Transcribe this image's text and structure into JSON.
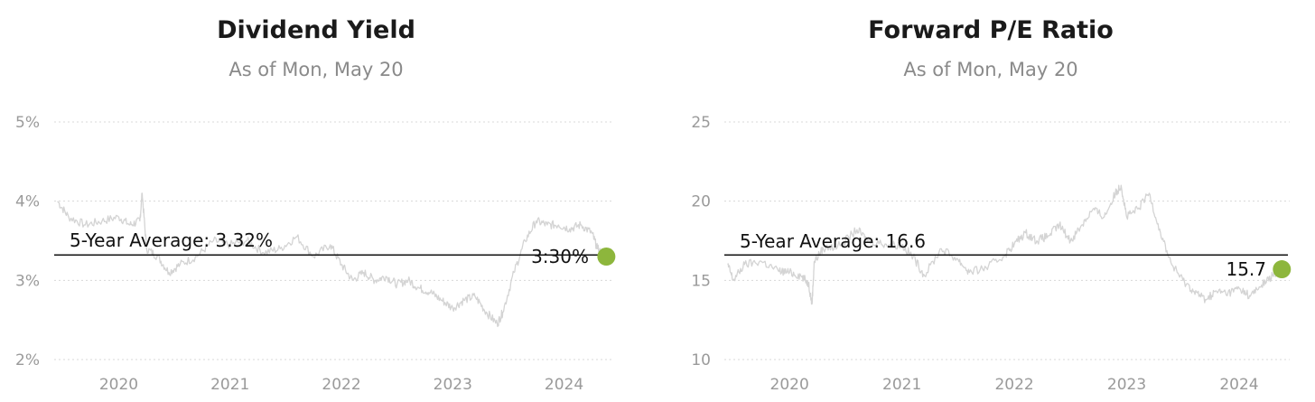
{
  "charts": [
    {
      "title": "Dividend Yield",
      "subtitle": "As of Mon, May 20",
      "average_label": "5-Year Average: 3.32%",
      "current_label": "3:30%"
    },
    {
      "title": "Forward P/E Ratio",
      "subtitle": "As of Mon, May 20",
      "average_label": "5-Year Average: 16.6",
      "current_label": "15.7"
    }
  ],
  "chart_data": [
    {
      "type": "line",
      "title": "Dividend Yield",
      "subtitle": "As of Mon, May 20",
      "x_ticks": [
        "2020",
        "2021",
        "2022",
        "2023",
        "2024"
      ],
      "y_ticks": [
        "5%",
        "4%",
        "3%",
        "2%"
      ],
      "ylim": [
        2,
        5
      ],
      "xlim": [
        2019.42,
        2024.45
      ],
      "grid": true,
      "series": [
        {
          "x": [
            2019.45,
            2019.55,
            2019.7,
            2019.85,
            2020.0,
            2020.1,
            2020.19,
            2020.21,
            2020.25,
            2020.35,
            2020.45,
            2020.55,
            2020.7,
            2020.85,
            2021.0,
            2021.15,
            2021.3,
            2021.45,
            2021.6,
            2021.75,
            2021.9,
            2022.0,
            2022.1,
            2022.2,
            2022.3,
            2022.4,
            2022.5,
            2022.6,
            2022.7,
            2022.8,
            2022.9,
            2023.0,
            2023.1,
            2023.2,
            2023.3,
            2023.4,
            2023.45,
            2023.55,
            2023.65,
            2023.75,
            2023.85,
            2023.95,
            2024.05,
            2024.15,
            2024.25,
            2024.3,
            2024.38
          ],
          "y": [
            4.0,
            3.8,
            3.7,
            3.75,
            3.8,
            3.7,
            3.75,
            4.1,
            3.4,
            3.3,
            3.1,
            3.2,
            3.3,
            3.5,
            3.45,
            3.5,
            3.35,
            3.4,
            3.55,
            3.3,
            3.45,
            3.2,
            3.0,
            3.1,
            3.0,
            3.05,
            2.95,
            3.0,
            2.9,
            2.85,
            2.75,
            2.65,
            2.75,
            2.8,
            2.6,
            2.45,
            2.6,
            3.1,
            3.5,
            3.75,
            3.7,
            3.7,
            3.65,
            3.7,
            3.6,
            3.4,
            3.3
          ],
          "color": "#d4d4d4"
        }
      ],
      "average": 3.32,
      "current": 3.3,
      "line_color": "#d4d4d4",
      "average_color": "#111111",
      "marker_color": "#8db63c"
    },
    {
      "type": "line",
      "title": "Forward P/E Ratio",
      "subtitle": "As of Mon, May 20",
      "x_ticks": [
        "2020",
        "2021",
        "2022",
        "2023",
        "2024"
      ],
      "y_ticks": [
        "25",
        "20",
        "15",
        "10"
      ],
      "ylim": [
        10,
        25
      ],
      "xlim": [
        2019.42,
        2024.45
      ],
      "grid": true,
      "series": [
        {
          "x": [
            2019.45,
            2019.5,
            2019.6,
            2019.75,
            2019.9,
            2020.0,
            2020.1,
            2020.17,
            2020.2,
            2020.22,
            2020.3,
            2020.45,
            2020.6,
            2020.7,
            2020.85,
            2021.0,
            2021.1,
            2021.2,
            2021.35,
            2021.5,
            2021.6,
            2021.75,
            2021.9,
            2022.0,
            2022.1,
            2022.2,
            2022.3,
            2022.4,
            2022.5,
            2022.6,
            2022.7,
            2022.8,
            2022.9,
            2022.95,
            2023.0,
            2023.1,
            2023.2,
            2023.3,
            2023.4,
            2023.5,
            2023.6,
            2023.7,
            2023.8,
            2023.9,
            2024.0,
            2024.1,
            2024.2,
            2024.3,
            2024.38
          ],
          "y": [
            16.0,
            15.0,
            16.0,
            16.2,
            15.6,
            15.5,
            15.3,
            14.8,
            13.5,
            16.2,
            17.0,
            17.2,
            18.2,
            17.5,
            17.3,
            17.2,
            16.5,
            15.3,
            17.0,
            16.3,
            15.5,
            15.8,
            16.5,
            17.3,
            18.0,
            17.5,
            17.8,
            18.5,
            17.5,
            18.5,
            19.5,
            19.0,
            20.5,
            21.0,
            19.0,
            19.5,
            20.5,
            18.0,
            16.0,
            15.0,
            14.3,
            13.8,
            14.3,
            14.2,
            14.5,
            14.0,
            14.7,
            15.3,
            15.7
          ],
          "color": "#d4d4d4"
        }
      ],
      "average": 16.6,
      "current": 15.7,
      "line_color": "#d4d4d4",
      "average_color": "#111111",
      "marker_color": "#8db63c"
    }
  ]
}
